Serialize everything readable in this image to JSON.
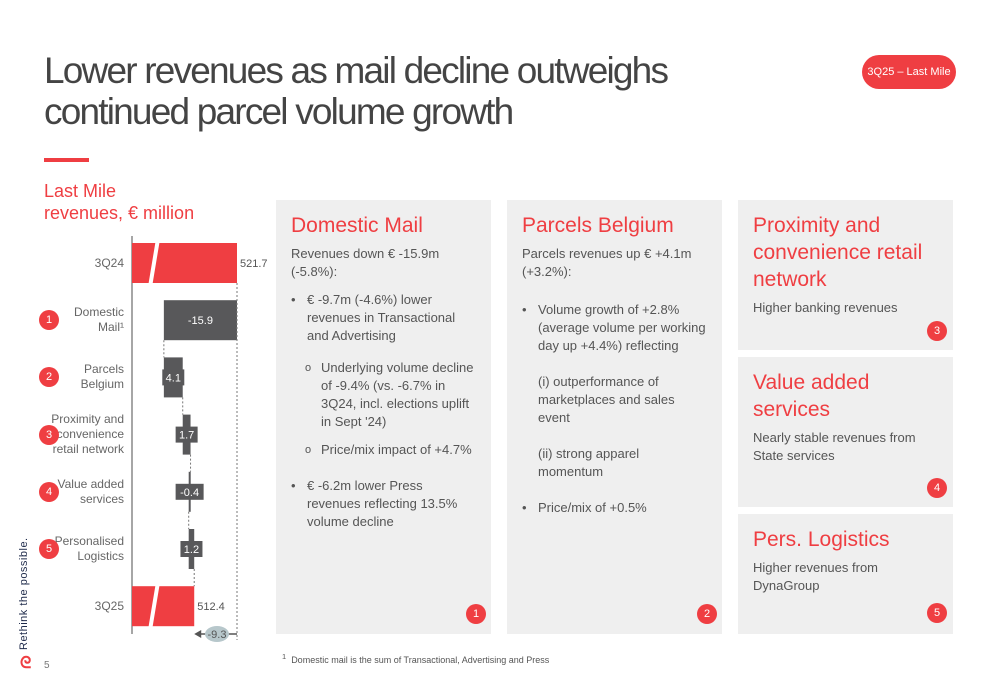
{
  "title": "Lower revenues as mail decline outweighs continued parcel volume growth",
  "badge": "3Q25 – Last Mile",
  "chart_data": {
    "type": "waterfall",
    "title": "Last Mile revenues, € million",
    "categories": [
      "3Q24",
      "Domestic Mail¹",
      "Parcels Belgium",
      "Proximity and convenience retail network",
      "Value added services",
      "Personalised Logistics",
      "3Q25"
    ],
    "values": [
      521.7,
      -15.9,
      4.1,
      1.7,
      -0.4,
      1.2,
      512.4
    ],
    "value_labels": [
      "521.7",
      "-15.9",
      "4.1",
      "1.7",
      "-0.4",
      "1.2",
      "512.4"
    ],
    "total_change": "-9.3",
    "numbers": [
      "1",
      "2",
      "3",
      "4",
      "5"
    ],
    "colors": {
      "total": "#ef3e42",
      "delta": "#58585a",
      "change": "#b7c7cb"
    }
  },
  "chart_title_1": "Last Mile",
  "chart_title_2": "revenues, € million",
  "labels": [
    "3Q24",
    "Domestic\nMail¹",
    "Parcels\nBelgium",
    "Proximity and\nconvenience\nretail network",
    "Value added\nservices",
    "Personalised\nLogistics",
    "3Q25"
  ],
  "panels": {
    "domestic": {
      "title": "Domestic Mail",
      "intro": "Revenues down € -15.9m (-5.8%):",
      "b1": "€ -9.7m (-4.6%) lower revenues in Transactional and Advertising",
      "o1": "Underlying volume decline of -9.4% (vs. -6.7% in 3Q24, incl. elections uplift in Sept '24)",
      "o2": "Price/mix impact of +4.7%",
      "b2": "€ -6.2m lower Press revenues reflecting  13.5% volume decline",
      "num": "1"
    },
    "parcels": {
      "title": "Parcels Belgium",
      "intro": "Parcels revenues up € +4.1m (+3.2%):",
      "b1": "Volume growth of +2.8% (average volume per working day up +4.4%) reflecting",
      "p1": "(i) outperformance of marketplaces and sales event",
      "p2": "(ii) strong apparel momentum",
      "b2": "Price/mix of +0.5%",
      "num": "2"
    },
    "proximity": {
      "title": "Proximity and convenience retail network",
      "text": "Higher banking revenues",
      "num": "3"
    },
    "vas": {
      "title": "Value added services",
      "text": "Nearly stable revenues from State services",
      "num": "4"
    },
    "logistics": {
      "title": "Pers. Logistics",
      "text": "Higher revenues from DynaGroup",
      "num": "5"
    }
  },
  "footnote_mark": "1",
  "footnote": "Domestic mail is the sum of Transactional, Advertising and Press",
  "tagline": "Rethink the possible.",
  "page": "5"
}
